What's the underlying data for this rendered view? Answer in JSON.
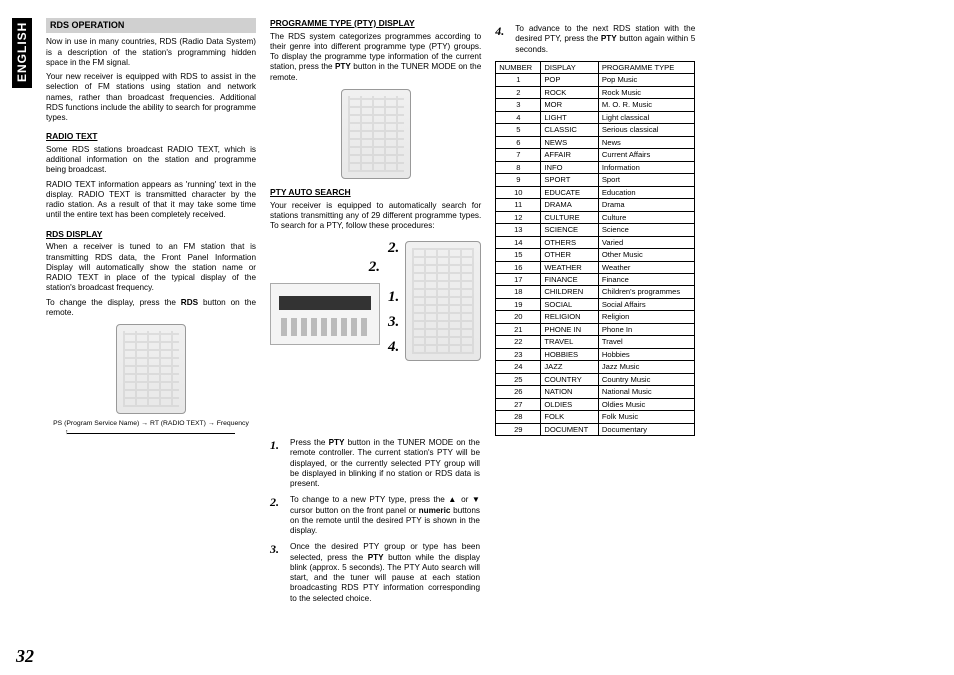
{
  "sideTab": "ENGLISH",
  "pageNumber": "32",
  "sectionBar": "RDS OPERATION",
  "intro1": "Now in use in many countries, RDS (Radio Data System) is a description of the station's programming hidden space in the FM signal.",
  "intro2": "Your new receiver is equipped with RDS to assist in the selection of FM stations using station and network names, rather than broadcast frequencies. Additional RDS functions include the ability to search for programme types.",
  "radioTextHead": "RADIO TEXT",
  "radioText1": "Some RDS stations broadcast RADIO TEXT, which is additional information on the station and programme being broadcast.",
  "radioText2": "RADIO TEXT information appears as 'running' text in the display. RADIO TEXT is transmitted character by the radio station.  As a result of that it may take some time until the entire text has been completely received.",
  "rdsDisplayHead": "RDS DISPLAY",
  "rdsDisplay1": "When a receiver is tuned to an FM station that is transmitting RDS data, the Front Panel Information Display will automatically show the station name or RADIO TEXT in place of the typical display of the station's broadcast frequency.",
  "rdsDisplay2a": "To change the display, press the ",
  "rdsDisplay2bold": "RDS",
  "rdsDisplay2b": " button on the remote.",
  "flowLabels": {
    "ps": "PS (Program Service Name)",
    "rt": "RT (RADIO TEXT)",
    "freq": "Frequency"
  },
  "ptyDisplayHead": "PROGRAMME TYPE (PTY) DISPLAY",
  "ptyDisplay1a": "The RDS system categorizes programmes according to their genre into different programme type (PTY) groups.  To display the programme type information of the current station, press the ",
  "ptyDisplay1bold": "PTY",
  "ptyDisplay1b": " button in the TUNER MODE on the remote.",
  "ptyAutoHead": "PTY AUTO SEARCH",
  "ptyAuto1": "Your receiver is equipped to automatically search for stations transmitting any of 29 different programme types.  To search for a PTY, follow these procedures:",
  "figNums": {
    "a": "2.",
    "b": "2.",
    "c": "1.",
    "d": "3.",
    "e": "4."
  },
  "steps": {
    "s1a": "Press the ",
    "s1bold": "PTY",
    "s1b": " button in the TUNER MODE on the remote controller.  The current station's PTY will be displayed, or the currently selected PTY group will be displayed in blinking if no station or RDS data is present.",
    "s2a": "To change to a new PTY type, press the ▲ or ▼ cursor button on the front panel or ",
    "s2bold": "numeric",
    "s2b": " buttons on the remote  until the desired PTY is shown in the display.",
    "s3a": "Once the desired PTY group or type has been selected, press the ",
    "s3bold": "PTY",
    "s3b": " button while the display blink (approx. 5 seconds).  The PTY Auto search will start, and the tuner will pause at each station broadcasting RDS PTY information corresponding to the selected choice.",
    "s4a": "To advance to the next RDS station with the desired PTY, press the ",
    "s4bold": "PTY",
    "s4b": " button again within 5 seconds."
  },
  "tableHead": {
    "num": "NUMBER",
    "disp": "DISPLAY",
    "type": "PROGRAMME TYPE"
  },
  "tableRows": [
    [
      "1",
      "POP",
      "Pop Music"
    ],
    [
      "2",
      "ROCK",
      "Rock Music"
    ],
    [
      "3",
      "MOR",
      "M. O. R. Music"
    ],
    [
      "4",
      "LIGHT",
      "Light classical"
    ],
    [
      "5",
      "CLASSIC",
      "Serious classical"
    ],
    [
      "6",
      "NEWS",
      "News"
    ],
    [
      "7",
      "AFFAIR",
      "Current Affairs"
    ],
    [
      "8",
      "INFO",
      "Information"
    ],
    [
      "9",
      "SPORT",
      "Sport"
    ],
    [
      "10",
      "EDUCATE",
      "Education"
    ],
    [
      "11",
      "DRAMA",
      "Drama"
    ],
    [
      "12",
      "CULTURE",
      "Culture"
    ],
    [
      "13",
      "SCIENCE",
      "Science"
    ],
    [
      "14",
      "OTHERS",
      "Varied"
    ],
    [
      "15",
      "OTHER",
      "Other Music"
    ],
    [
      "16",
      "WEATHER",
      "Weather"
    ],
    [
      "17",
      "FINANCE",
      "Finance"
    ],
    [
      "18",
      "CHILDREN",
      "Children's programmes"
    ],
    [
      "19",
      "SOCIAL",
      "Social Affairs"
    ],
    [
      "20",
      "RELIGION",
      "Religion"
    ],
    [
      "21",
      "PHONE IN",
      "Phone In"
    ],
    [
      "22",
      "TRAVEL",
      "Travel"
    ],
    [
      "23",
      "HOBBIES",
      "Hobbies"
    ],
    [
      "24",
      "JAZZ",
      "Jazz Music"
    ],
    [
      "25",
      "COUNTRY",
      "Country Music"
    ],
    [
      "26",
      "NATION",
      "National Music"
    ],
    [
      "27",
      "OLDIES",
      "Oldies Music"
    ],
    [
      "28",
      "FOLK",
      "Folk Music"
    ],
    [
      "29",
      "DOCUMENT",
      "Documentary"
    ]
  ]
}
